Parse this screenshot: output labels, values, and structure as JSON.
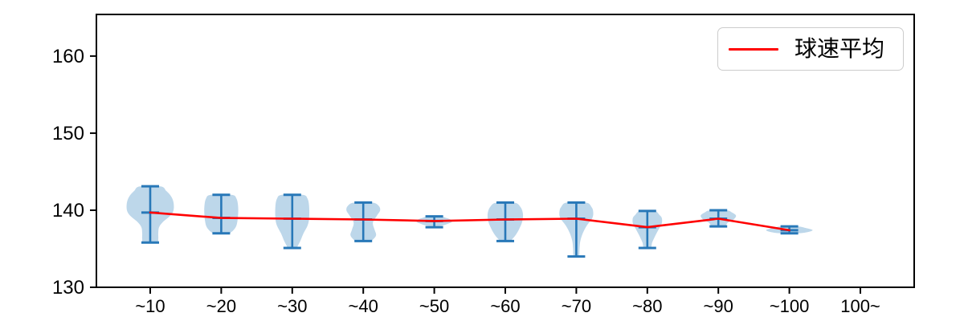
{
  "figure": {
    "background": "#ffffff"
  },
  "chart_data": {
    "type": "violin",
    "title": "",
    "xlabel": "",
    "ylabel": "",
    "categories": [
      "~10",
      "~20",
      "~30",
      "~40",
      "~50",
      "~60",
      "~70",
      "~80",
      "~90",
      "~100",
      "100~"
    ],
    "yticks": [
      130,
      140,
      150,
      160
    ],
    "ylim": [
      130,
      165.4
    ],
    "grid": false,
    "legend": {
      "label": "球速平均",
      "line_color": "#ff0000",
      "position": "upper right"
    },
    "colors": {
      "violin_fill": "#bdd7ea",
      "violin_line": "#2878b8",
      "mean_line": "#ff0000",
      "axis": "#000000",
      "legend_border": "#cccccc"
    },
    "series": [
      {
        "name": "球速平均",
        "type": "line",
        "color": "#ff0000",
        "x_categories": [
          "~10",
          "~20",
          "~30",
          "~40",
          "~50",
          "~60",
          "~70",
          "~80",
          "~90",
          "~100"
        ],
        "values": [
          139.7,
          139.0,
          138.9,
          138.8,
          138.6,
          138.8,
          138.9,
          137.8,
          138.9,
          137.4
        ]
      }
    ],
    "violins": [
      {
        "category": "~10",
        "min": 135.8,
        "max": 143.1,
        "mean": 139.7,
        "profile": [
          [
            143.1,
            13
          ],
          [
            142.5,
            20
          ],
          [
            141.8,
            26
          ],
          [
            141,
            29
          ],
          [
            140,
            29
          ],
          [
            139.3,
            25
          ],
          [
            138.5,
            16
          ],
          [
            137.8,
            11
          ],
          [
            137,
            10
          ],
          [
            136.3,
            10
          ],
          [
            135.8,
            8
          ]
        ]
      },
      {
        "category": "~20",
        "min": 137.0,
        "max": 142.0,
        "mean": 139.0,
        "profile": [
          [
            142,
            13
          ],
          [
            141.5,
            19
          ],
          [
            140.5,
            21
          ],
          [
            139.5,
            21
          ],
          [
            138.5,
            20
          ],
          [
            137.8,
            18
          ],
          [
            137.2,
            13
          ],
          [
            137,
            8
          ]
        ]
      },
      {
        "category": "~30",
        "min": 135.1,
        "max": 142.0,
        "mean": 138.9,
        "profile": [
          [
            142,
            13
          ],
          [
            141.5,
            19
          ],
          [
            140.5,
            21
          ],
          [
            139,
            21
          ],
          [
            138,
            19
          ],
          [
            137,
            14
          ],
          [
            136,
            10
          ],
          [
            135.4,
            7
          ],
          [
            135.1,
            5
          ]
        ]
      },
      {
        "category": "~40",
        "min": 136.0,
        "max": 141.0,
        "mean": 138.8,
        "profile": [
          [
            141,
            11
          ],
          [
            140.6,
            19
          ],
          [
            140,
            21
          ],
          [
            139.3,
            17
          ],
          [
            138.4,
            12
          ],
          [
            137.5,
            14
          ],
          [
            136.8,
            16
          ],
          [
            136.3,
            13
          ],
          [
            136,
            8
          ]
        ]
      },
      {
        "category": "~50",
        "min": 137.8,
        "max": 139.2,
        "mean": 138.6,
        "profile": [
          [
            139.2,
            8
          ],
          [
            139,
            15
          ],
          [
            138.8,
            20
          ],
          [
            138.5,
            22
          ],
          [
            138.2,
            16
          ],
          [
            138,
            8
          ]
        ]
      },
      {
        "category": "~60",
        "min": 136.0,
        "max": 141.0,
        "mean": 138.8,
        "profile": [
          [
            141,
            11
          ],
          [
            140.4,
            19
          ],
          [
            139.5,
            22
          ],
          [
            138.5,
            21
          ],
          [
            137.5,
            17
          ],
          [
            136.8,
            13
          ],
          [
            136.3,
            9
          ],
          [
            136,
            6
          ]
        ]
      },
      {
        "category": "~70",
        "min": 134.0,
        "max": 141.0,
        "mean": 138.9,
        "profile": [
          [
            141,
            12
          ],
          [
            140.4,
            19
          ],
          [
            139.8,
            21
          ],
          [
            139,
            20
          ],
          [
            138,
            13
          ],
          [
            137,
            8
          ],
          [
            136,
            5
          ],
          [
            135,
            4
          ],
          [
            134,
            3
          ]
        ]
      },
      {
        "category": "~80",
        "min": 135.1,
        "max": 139.9,
        "mean": 137.8,
        "profile": [
          [
            139.9,
            9
          ],
          [
            139.4,
            15
          ],
          [
            139,
            18
          ],
          [
            138.3,
            18
          ],
          [
            137.5,
            14
          ],
          [
            136.5,
            9
          ],
          [
            135.8,
            6
          ],
          [
            135.1,
            4
          ]
        ]
      },
      {
        "category": "~90",
        "min": 137.9,
        "max": 140.0,
        "mean": 138.9,
        "profile": [
          [
            140,
            10
          ],
          [
            139.7,
            17
          ],
          [
            139.3,
            22
          ],
          [
            138.8,
            19
          ],
          [
            138.4,
            12
          ],
          [
            137.9,
            7
          ]
        ]
      },
      {
        "category": "~100",
        "min": 137.0,
        "max": 137.9,
        "mean": 137.4,
        "profile": [
          [
            137.9,
            10
          ],
          [
            137.7,
            20
          ],
          [
            137.4,
            29
          ],
          [
            137.1,
            20
          ],
          [
            137,
            10
          ]
        ]
      }
    ]
  }
}
